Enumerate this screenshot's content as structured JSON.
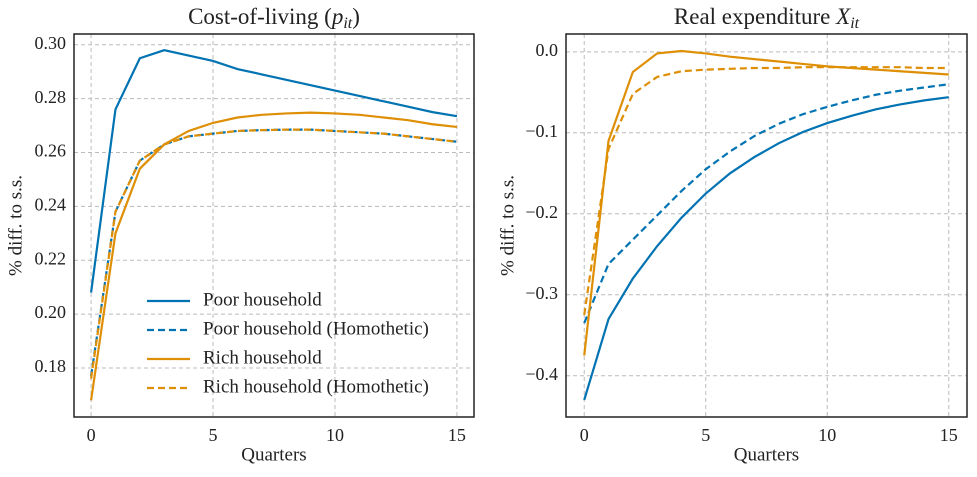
{
  "chart_data": [
    {
      "type": "line",
      "title": [
        "Cost-of-living (",
        "p",
        "it",
        ")"
      ],
      "xlabel": "Quarters",
      "ylabel": "% diff. to s.s.",
      "x": [
        0,
        1,
        2,
        3,
        4,
        5,
        6,
        7,
        8,
        9,
        10,
        11,
        12,
        13,
        14,
        15
      ],
      "xlim": [
        -0.7,
        15.7
      ],
      "xticks": [
        0,
        5,
        10,
        15
      ],
      "ylim": [
        0.1618,
        0.304
      ],
      "yticks": [
        0.18,
        {
          "value": 0.2,
          "label": "0.20"
        },
        0.22,
        0.24,
        0.26,
        0.28,
        {
          "value": 0.3,
          "label": "0.30"
        }
      ],
      "grid": true,
      "legend": "lower right",
      "series": [
        {
          "name": "Poor household",
          "color": "#0173b2",
          "dash": false,
          "values": [
            0.208,
            0.276,
            0.295,
            0.298,
            0.296,
            0.294,
            0.291,
            0.289,
            0.287,
            0.285,
            0.283,
            0.281,
            0.279,
            0.277,
            0.275,
            0.2735
          ]
        },
        {
          "name": "Poor household (Homothetic)",
          "color": "#0173b2",
          "dash": true,
          "values": [
            0.177,
            0.238,
            0.257,
            0.263,
            0.266,
            0.267,
            0.268,
            0.2683,
            0.2685,
            0.2685,
            0.268,
            0.2675,
            0.267,
            0.266,
            0.265,
            0.264
          ]
        },
        {
          "name": "Rich household",
          "color": "#de8f05",
          "dash": false,
          "values": [
            0.168,
            0.23,
            0.254,
            0.263,
            0.268,
            0.271,
            0.273,
            0.274,
            0.2745,
            0.2748,
            0.2745,
            0.274,
            0.273,
            0.272,
            0.2705,
            0.2695
          ]
        },
        {
          "name": "Rich household (Homothetic)",
          "color": "#de8f05",
          "dash": true,
          "values": [
            0.176,
            0.238,
            0.257,
            0.263,
            0.266,
            0.267,
            0.268,
            0.2683,
            0.2685,
            0.2685,
            0.268,
            0.2675,
            0.267,
            0.266,
            0.265,
            0.264
          ]
        }
      ]
    },
    {
      "type": "line",
      "title": [
        "Real expenditure ",
        "X",
        "it"
      ],
      "xlabel": "Quarters",
      "ylabel": "% diff. to s.s.",
      "x": [
        0,
        1,
        2,
        3,
        4,
        5,
        6,
        7,
        8,
        9,
        10,
        11,
        12,
        13,
        14,
        15
      ],
      "xlim": [
        -0.75,
        15.75
      ],
      "xticks": [
        0,
        5,
        10,
        15
      ],
      "ylim": [
        -0.451,
        0.022
      ],
      "yticks": [
        {
          "value": -0.4,
          "label": "−0.4"
        },
        {
          "value": -0.3,
          "label": "−0.3"
        },
        {
          "value": -0.2,
          "label": "−0.2"
        },
        {
          "value": -0.1,
          "label": "−0.1"
        },
        {
          "value": 0,
          "label": "0.0"
        }
      ],
      "grid": true,
      "legend": false,
      "series": [
        {
          "color": "#0173b2",
          "dash": false,
          "values": [
            -0.43,
            -0.33,
            -0.28,
            -0.24,
            -0.205,
            -0.175,
            -0.15,
            -0.13,
            -0.113,
            -0.099,
            -0.088,
            -0.079,
            -0.071,
            -0.065,
            -0.06,
            -0.056
          ]
        },
        {
          "color": "#0173b2",
          "dash": true,
          "values": [
            -0.335,
            -0.262,
            -0.232,
            -0.202,
            -0.172,
            -0.145,
            -0.123,
            -0.104,
            -0.089,
            -0.077,
            -0.068,
            -0.06,
            -0.053,
            -0.048,
            -0.044,
            -0.04
          ]
        },
        {
          "color": "#de8f05",
          "dash": false,
          "values": [
            -0.375,
            -0.11,
            -0.025,
            -0.002,
            0.001,
            -0.002,
            -0.006,
            -0.009,
            -0.012,
            -0.015,
            -0.018,
            -0.02,
            -0.022,
            -0.024,
            -0.026,
            -0.028
          ]
        },
        {
          "color": "#de8f05",
          "dash": true,
          "values": [
            -0.325,
            -0.12,
            -0.052,
            -0.031,
            -0.024,
            -0.022,
            -0.021,
            -0.02,
            -0.02,
            -0.019,
            -0.019,
            -0.019,
            -0.019,
            -0.019,
            -0.02,
            -0.02
          ]
        }
      ]
    }
  ]
}
